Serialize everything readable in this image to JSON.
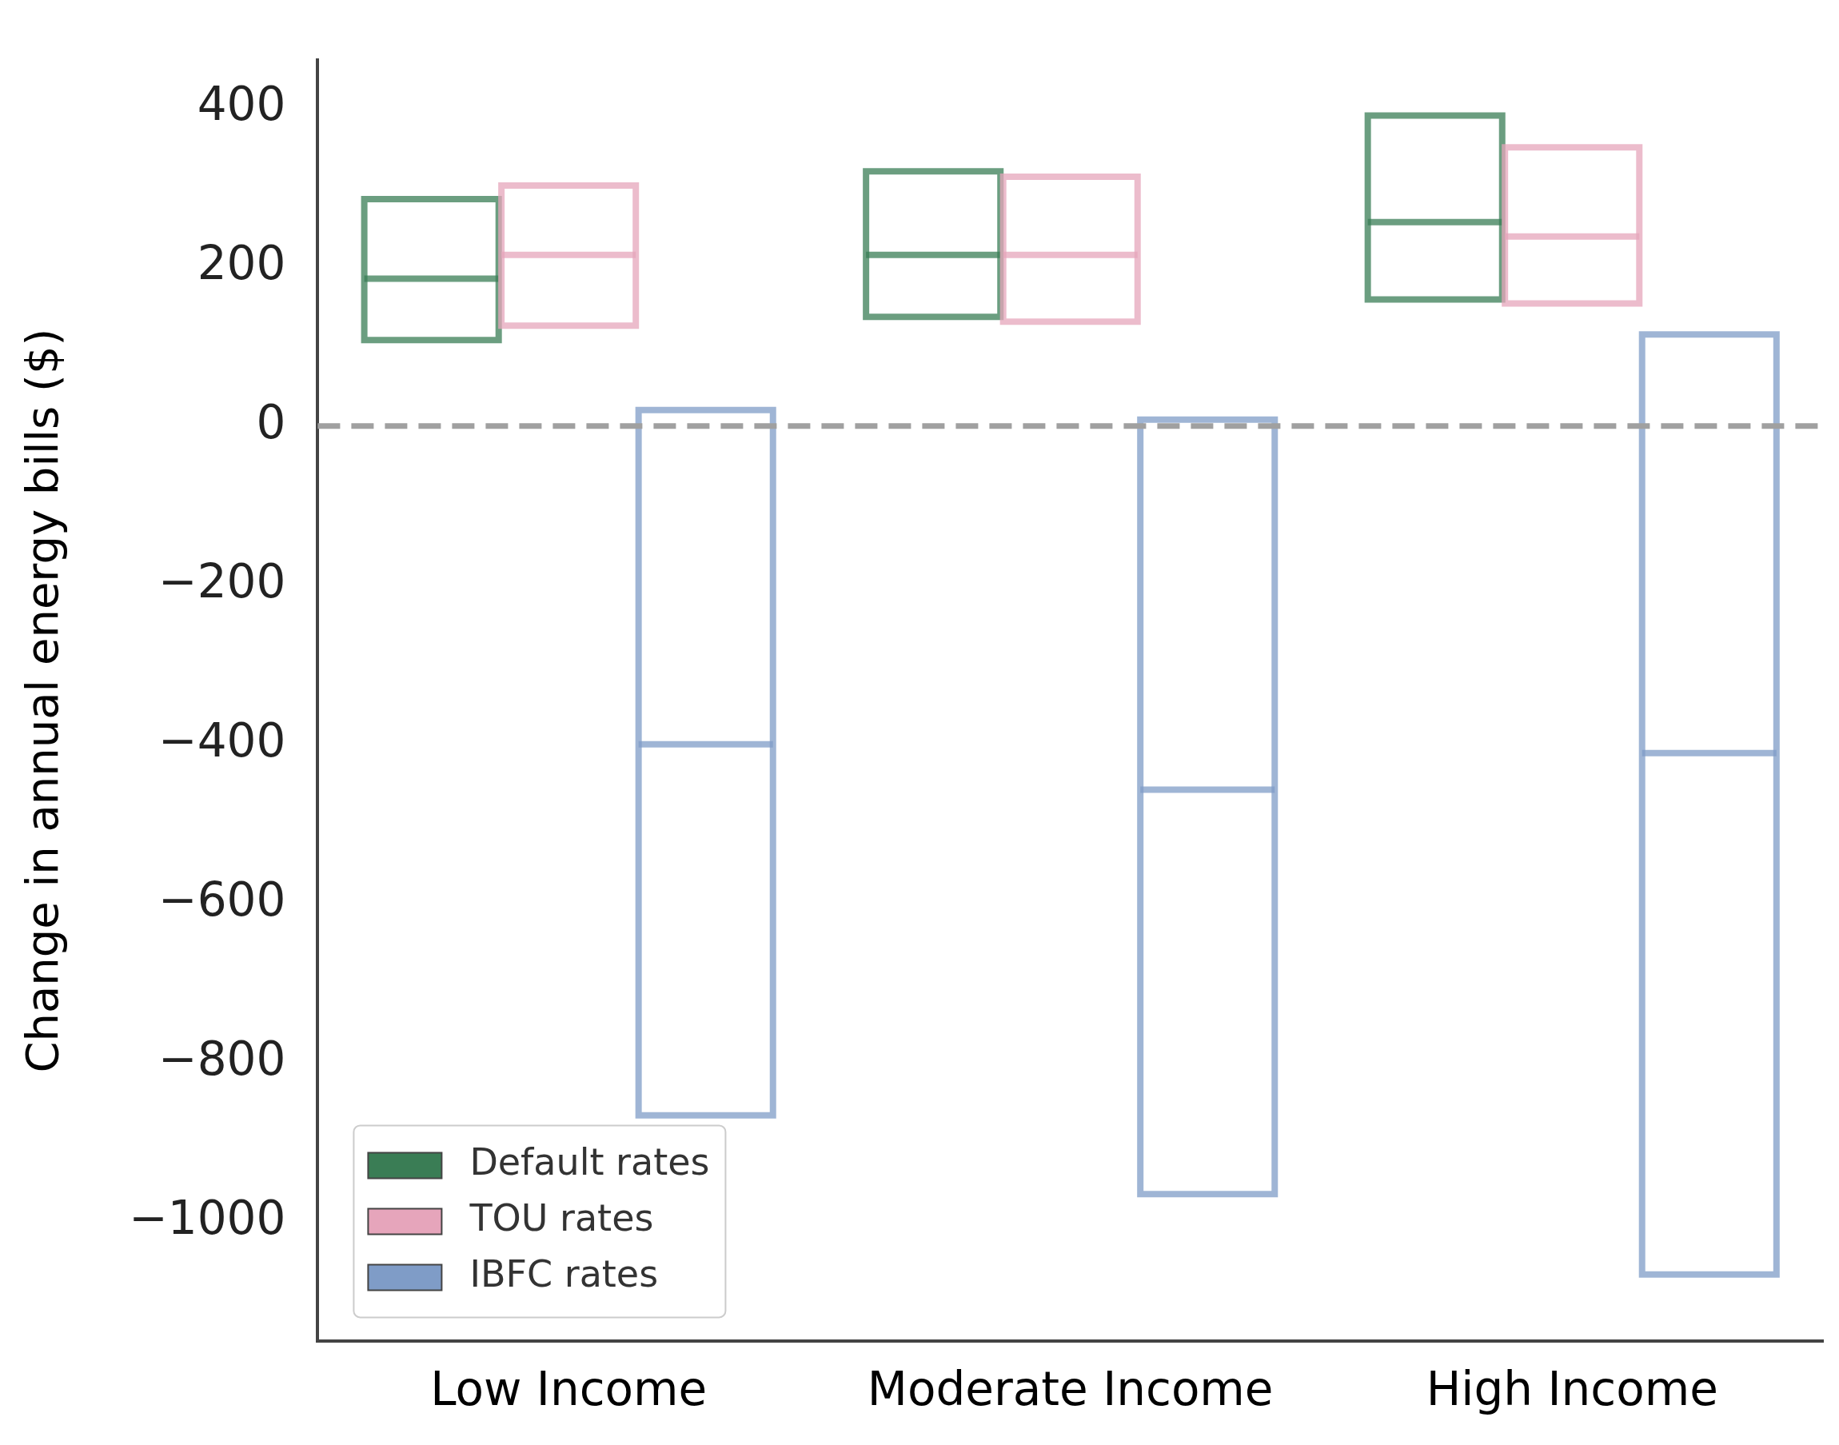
{
  "chart_data": {
    "type": "box",
    "ylabel": "Change in annual energy bills ($)",
    "categories": [
      "Low Income",
      "Moderate Income",
      "High Income"
    ],
    "series": [
      {
        "name": "Default rates",
        "color": "#3a7d55",
        "boxes": [
          {
            "low": 108,
            "q1": 108,
            "median": 185,
            "q3": 285,
            "high": 285
          },
          {
            "low": 137,
            "q1": 137,
            "median": 215,
            "q3": 320,
            "high": 320
          },
          {
            "low": 159,
            "q1": 159,
            "median": 256,
            "q3": 390,
            "high": 390
          }
        ]
      },
      {
        "name": "TOU rates",
        "color": "#e6a5bb",
        "boxes": [
          {
            "low": 126,
            "q1": 126,
            "median": 215,
            "q3": 302,
            "high": 302
          },
          {
            "low": 131,
            "q1": 131,
            "median": 215,
            "q3": 313,
            "high": 313
          },
          {
            "low": 154,
            "q1": 154,
            "median": 238,
            "q3": 350,
            "high": 350
          }
        ]
      },
      {
        "name": "IBFC rates",
        "color": "#7f9cc7",
        "boxes": [
          {
            "low": -866,
            "q1": -866,
            "median": -400,
            "q3": 20,
            "high": 20
          },
          {
            "low": -965,
            "q1": -965,
            "median": -457,
            "q3": 8,
            "high": 8
          },
          {
            "low": -1066,
            "q1": -1066,
            "median": -411,
            "q3": 115,
            "high": 115
          }
        ]
      }
    ],
    "ylim": [
      -1150,
      460
    ],
    "yticks": [
      -1000,
      -800,
      -600,
      -400,
      -200,
      0,
      200,
      400
    ],
    "ref_lines": [
      {
        "axis": "y",
        "value": 0,
        "color": "#a0a0a0",
        "line_style": "dashed"
      }
    ],
    "legend": "bottom left",
    "grid": false
  }
}
